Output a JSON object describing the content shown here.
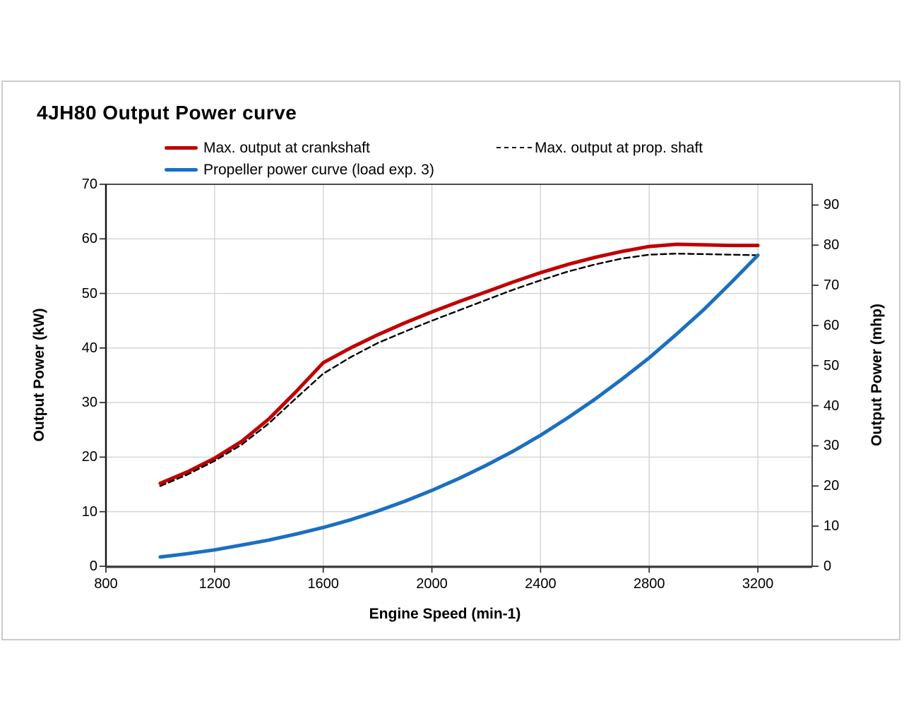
{
  "title": "4JH80 Output Power curve",
  "colors": {
    "crankshaft": "#c00000",
    "prop_shaft": "#000000",
    "propeller_curve": "#1b6fc1",
    "grid": "#d3d3d3",
    "axis": "#333333",
    "frame_border": "#cbcbcb"
  },
  "legend": {
    "items": [
      {
        "label": "Max. output at crankshaft",
        "style": "solid",
        "color": "#c00000"
      },
      {
        "label": "Max. output at prop. shaft",
        "style": "dashed",
        "color": "#000000"
      },
      {
        "label": "Propeller power curve (load exp. 3)",
        "style": "solid",
        "color": "#1b6fc1"
      }
    ]
  },
  "axes": {
    "x": {
      "label": "Engine Speed (min-1)",
      "ticks": [
        800,
        1200,
        1600,
        2000,
        2400,
        2800,
        3200
      ],
      "range": [
        800,
        3400
      ]
    },
    "y_left": {
      "label": "Output Power (kW)",
      "ticks": [
        0,
        10,
        20,
        30,
        40,
        50,
        60,
        70
      ],
      "range": [
        0,
        70
      ]
    },
    "y_right": {
      "label": "Output Power (mhp)",
      "ticks": [
        0,
        10,
        20,
        30,
        40,
        50,
        60,
        70,
        80,
        90
      ],
      "kw_per_mhp": 0.73549875
    }
  },
  "chart_data": {
    "type": "line",
    "title": "4JH80 Output Power curve",
    "xlabel": "Engine Speed (min-1)",
    "ylabel_left": "Output Power (kW)",
    "ylabel_right": "Output Power (mhp)",
    "xlim": [
      800,
      3400
    ],
    "ylim_left": [
      0,
      70
    ],
    "ylim_right_ticks_mhp": [
      0,
      10,
      20,
      30,
      40,
      50,
      60,
      70,
      80,
      90
    ],
    "grid": true,
    "legend_position": "top",
    "x": [
      1000,
      1100,
      1200,
      1300,
      1400,
      1500,
      1600,
      1700,
      1800,
      1900,
      2000,
      2100,
      2200,
      2300,
      2400,
      2500,
      2600,
      2700,
      2800,
      2900,
      3000,
      3100,
      3200
    ],
    "series": [
      {
        "id": "crankshaft",
        "name": "Max. output at crankshaft",
        "color": "#c00000",
        "width": 5,
        "dash": null,
        "values": [
          15.2,
          17.3,
          19.8,
          22.9,
          27.0,
          32.0,
          37.3,
          40.0,
          42.4,
          44.6,
          46.6,
          48.5,
          50.3,
          52.1,
          53.8,
          55.3,
          56.6,
          57.7,
          58.6,
          59.0,
          58.9,
          58.8,
          58.8
        ]
      },
      {
        "id": "prop-shaft",
        "name": "Max. output at prop. shaft",
        "color": "#000000",
        "width": 2.4,
        "dash": "8 5",
        "values": [
          14.7,
          16.8,
          19.3,
          22.3,
          26.2,
          30.8,
          35.3,
          38.3,
          40.9,
          43.0,
          45.0,
          46.9,
          48.8,
          50.7,
          52.4,
          54.0,
          55.3,
          56.4,
          57.1,
          57.3,
          57.2,
          57.1,
          57.0
        ]
      },
      {
        "id": "propeller",
        "name": "Propeller power curve (load exp. 3)",
        "color": "#1b6fc1",
        "width": 5,
        "dash": null,
        "values": [
          1.7,
          2.3,
          3.0,
          3.9,
          4.8,
          5.9,
          7.1,
          8.5,
          10.1,
          11.9,
          13.9,
          16.1,
          18.5,
          21.1,
          24.0,
          27.2,
          30.6,
          34.3,
          38.2,
          42.5,
          47.0,
          51.9,
          57.0
        ]
      }
    ]
  }
}
